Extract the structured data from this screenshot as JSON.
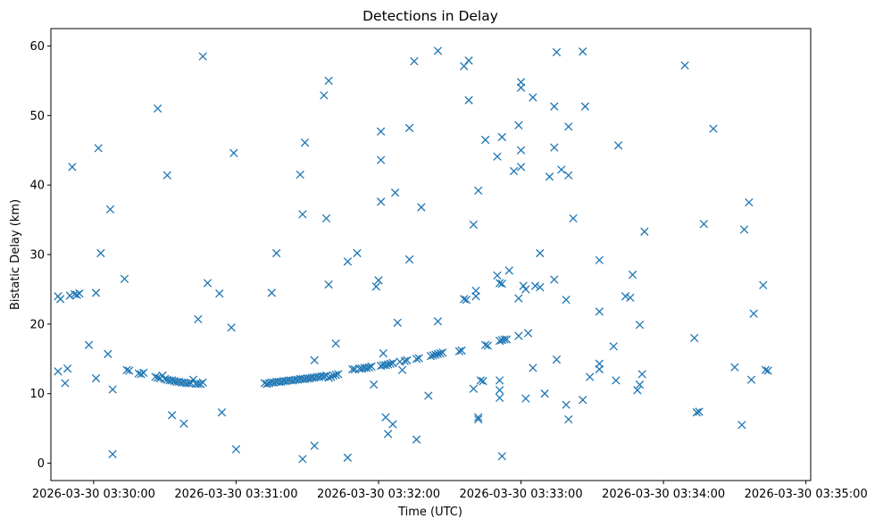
{
  "chart_data": {
    "type": "scatter",
    "title": "Detections in Delay",
    "xlabel": "Time (UTC)",
    "ylabel": "Bistatic Delay (km)",
    "marker": "x",
    "color": "#1f77b4",
    "x_unit": "seconds after 2026-03-30 03:30:00",
    "xlim": [
      -18,
      302
    ],
    "ylim": [
      -2.5,
      62.5
    ],
    "x_ticks": [
      0,
      60,
      120,
      180,
      240,
      300
    ],
    "x_tick_labels": [
      "2026-03-30 03:30:00",
      "2026-03-30 03:31:00",
      "2026-03-30 03:32:00",
      "2026-03-30 03:33:00",
      "2026-03-30 03:34:00",
      "2026-03-30 03:35:00"
    ],
    "y_ticks": [
      0,
      10,
      20,
      30,
      40,
      50,
      60
    ],
    "y_tick_labels": [
      "0",
      "10",
      "20",
      "30",
      "40",
      "50",
      "60"
    ],
    "series": [
      {
        "name": "Detections",
        "points": [
          [
            -15,
            24.0
          ],
          [
            -14,
            23.6
          ],
          [
            -11,
            13.6
          ],
          [
            -10,
            24.1
          ],
          [
            -8,
            24.3
          ],
          [
            -7,
            24.2
          ],
          [
            -6,
            24.4
          ],
          [
            -15,
            13.2
          ],
          [
            -12,
            11.5
          ],
          [
            -9,
            42.6
          ],
          [
            1,
            24.5
          ],
          [
            1,
            12.2
          ],
          [
            2,
            45.3
          ],
          [
            3,
            30.2
          ],
          [
            -2,
            17.0
          ],
          [
            6,
            15.7
          ],
          [
            7,
            36.5
          ],
          [
            8,
            10.6
          ],
          [
            8,
            1.3
          ],
          [
            13,
            26.5
          ],
          [
            14,
            13.4
          ],
          [
            15,
            13.3
          ],
          [
            19,
            12.9
          ],
          [
            20,
            12.8
          ],
          [
            21,
            13.0
          ],
          [
            26,
            12.4
          ],
          [
            27,
            12.3
          ],
          [
            28,
            12.2
          ],
          [
            29,
            12.6
          ],
          [
            30,
            12.1
          ],
          [
            31,
            12.0
          ],
          [
            32,
            11.9
          ],
          [
            33,
            11.9
          ],
          [
            34,
            11.8
          ],
          [
            35,
            11.7
          ],
          [
            36,
            11.7
          ],
          [
            37,
            11.6
          ],
          [
            38,
            11.6
          ],
          [
            39,
            11.5
          ],
          [
            40,
            11.5
          ],
          [
            41,
            11.5
          ],
          [
            42,
            12.0
          ],
          [
            43,
            11.4
          ],
          [
            44,
            11.4
          ],
          [
            45,
            11.4
          ],
          [
            46,
            11.6
          ],
          [
            27,
            51.0
          ],
          [
            31,
            41.4
          ],
          [
            33,
            6.9
          ],
          [
            38,
            5.7
          ],
          [
            44,
            20.7
          ],
          [
            46,
            58.5
          ],
          [
            48,
            25.9
          ],
          [
            53,
            24.4
          ],
          [
            54,
            7.3
          ],
          [
            58,
            19.5
          ],
          [
            59,
            44.6
          ],
          [
            60,
            2.0
          ],
          [
            72,
            11.5
          ],
          [
            73,
            11.4
          ],
          [
            74,
            11.5
          ],
          [
            75,
            11.6
          ],
          [
            76,
            11.6
          ],
          [
            77,
            11.7
          ],
          [
            78,
            11.7
          ],
          [
            79,
            11.7
          ],
          [
            80,
            11.8
          ],
          [
            81,
            11.8
          ],
          [
            82,
            11.9
          ],
          [
            83,
            11.9
          ],
          [
            84,
            11.9
          ],
          [
            85,
            12.0
          ],
          [
            86,
            12.0
          ],
          [
            87,
            12.1
          ],
          [
            88,
            12.1
          ],
          [
            89,
            12.1
          ],
          [
            90,
            12.2
          ],
          [
            91,
            12.2
          ],
          [
            92,
            12.3
          ],
          [
            93,
            12.3
          ],
          [
            94,
            12.4
          ],
          [
            95,
            12.4
          ],
          [
            96,
            12.5
          ],
          [
            97,
            12.5
          ],
          [
            98,
            12.6
          ],
          [
            99,
            12.3
          ],
          [
            100,
            12.4
          ],
          [
            101,
            12.6
          ],
          [
            102,
            12.7
          ],
          [
            103,
            12.8
          ],
          [
            75,
            24.5
          ],
          [
            77,
            30.2
          ],
          [
            87,
            41.5
          ],
          [
            88,
            35.8
          ],
          [
            89,
            46.1
          ],
          [
            88,
            0.6
          ],
          [
            93,
            14.8
          ],
          [
            93,
            2.5
          ],
          [
            97,
            52.9
          ],
          [
            98,
            35.2
          ],
          [
            99,
            55.0
          ],
          [
            99,
            25.7
          ],
          [
            102,
            17.2
          ],
          [
            107,
            29.0
          ],
          [
            107,
            0.8
          ],
          [
            109,
            13.5
          ],
          [
            110,
            13.5
          ],
          [
            111,
            30.2
          ],
          [
            112,
            13.6
          ],
          [
            113,
            13.6
          ],
          [
            114,
            13.7
          ],
          [
            115,
            13.7
          ],
          [
            116,
            13.8
          ],
          [
            117,
            13.9
          ],
          [
            118,
            11.3
          ],
          [
            119,
            25.4
          ],
          [
            120,
            26.3
          ],
          [
            121,
            14.0
          ],
          [
            122,
            14.1
          ],
          [
            123,
            14.1
          ],
          [
            124,
            14.2
          ],
          [
            125,
            14.3
          ],
          [
            126,
            14.4
          ],
          [
            121,
            47.7
          ],
          [
            121,
            43.6
          ],
          [
            121,
            37.6
          ],
          [
            122,
            15.8
          ],
          [
            123,
            6.6
          ],
          [
            124,
            4.2
          ],
          [
            126,
            5.6
          ],
          [
            127,
            38.9
          ],
          [
            128,
            20.2
          ],
          [
            129,
            14.6
          ],
          [
            130,
            13.4
          ],
          [
            131,
            14.7
          ],
          [
            132,
            14.8
          ],
          [
            133,
            48.2
          ],
          [
            133,
            29.3
          ],
          [
            135,
            57.8
          ],
          [
            136,
            15.0
          ],
          [
            137,
            15.1
          ],
          [
            138,
            36.8
          ],
          [
            136,
            3.4
          ],
          [
            141,
            9.7
          ],
          [
            142,
            15.4
          ],
          [
            143,
            15.5
          ],
          [
            144,
            15.6
          ],
          [
            145,
            15.7
          ],
          [
            146,
            15.8
          ],
          [
            147,
            15.9
          ],
          [
            145,
            59.3
          ],
          [
            145,
            20.4
          ],
          [
            154,
            16.1
          ],
          [
            155,
            16.2
          ],
          [
            156,
            23.6
          ],
          [
            157,
            23.5
          ],
          [
            156,
            57.1
          ],
          [
            158,
            57.9
          ],
          [
            158,
            52.2
          ],
          [
            160,
            34.3
          ],
          [
            160,
            10.7
          ],
          [
            161,
            24.0
          ],
          [
            161,
            24.8
          ],
          [
            162,
            39.2
          ],
          [
            162,
            6.6
          ],
          [
            162,
            6.3
          ],
          [
            163,
            11.9
          ],
          [
            164,
            11.8
          ],
          [
            165,
            17.0
          ],
          [
            166,
            16.9
          ],
          [
            165,
            46.5
          ],
          [
            170,
            44.1
          ],
          [
            170,
            27.0
          ],
          [
            171,
            25.9
          ],
          [
            172,
            25.8
          ],
          [
            171,
            11.9
          ],
          [
            171,
            9.4
          ],
          [
            171,
            10.5
          ],
          [
            172,
            1.0
          ],
          [
            171,
            17.6
          ],
          [
            172,
            17.7
          ],
          [
            173,
            17.8
          ],
          [
            174,
            17.8
          ],
          [
            172,
            46.9
          ],
          [
            175,
            27.7
          ],
          [
            177,
            42.0
          ],
          [
            179,
            18.3
          ],
          [
            179,
            23.7
          ],
          [
            179,
            48.6
          ],
          [
            180,
            54.8
          ],
          [
            180,
            54.0
          ],
          [
            180,
            45.0
          ],
          [
            180,
            42.6
          ],
          [
            181,
            25.5
          ],
          [
            182,
            25.0
          ],
          [
            182,
            9.3
          ],
          [
            183,
            18.7
          ],
          [
            185,
            13.7
          ],
          [
            185,
            52.6
          ],
          [
            186,
            25.5
          ],
          [
            188,
            25.3
          ],
          [
            188,
            30.2
          ],
          [
            190,
            10.0
          ],
          [
            192,
            41.2
          ],
          [
            194,
            51.3
          ],
          [
            194,
            45.4
          ],
          [
            194,
            26.4
          ],
          [
            195,
            14.9
          ],
          [
            195,
            59.1
          ],
          [
            197,
            42.2
          ],
          [
            199,
            23.5
          ],
          [
            199,
            8.4
          ],
          [
            200,
            48.4
          ],
          [
            200,
            41.4
          ],
          [
            200,
            6.3
          ],
          [
            202,
            35.2
          ],
          [
            206,
            59.2
          ],
          [
            206,
            9.1
          ],
          [
            207,
            51.3
          ],
          [
            209,
            12.4
          ],
          [
            213,
            14.3
          ],
          [
            213,
            13.5
          ],
          [
            213,
            21.8
          ],
          [
            213,
            29.2
          ],
          [
            219,
            16.8
          ],
          [
            220,
            11.9
          ],
          [
            221,
            45.7
          ],
          [
            224,
            24.0
          ],
          [
            226,
            23.8
          ],
          [
            227,
            27.1
          ],
          [
            229,
            10.5
          ],
          [
            230,
            11.3
          ],
          [
            231,
            12.8
          ],
          [
            230,
            19.9
          ],
          [
            232,
            33.3
          ],
          [
            249,
            57.2
          ],
          [
            253,
            18.0
          ],
          [
            254,
            7.3
          ],
          [
            255,
            7.4
          ],
          [
            257,
            34.4
          ],
          [
            261,
            48.1
          ],
          [
            270,
            13.8
          ],
          [
            273,
            5.5
          ],
          [
            274,
            33.6
          ],
          [
            276,
            37.5
          ],
          [
            277,
            12.0
          ],
          [
            278,
            21.5
          ],
          [
            282,
            25.6
          ],
          [
            283,
            13.4
          ],
          [
            284,
            13.3
          ]
        ]
      }
    ]
  }
}
